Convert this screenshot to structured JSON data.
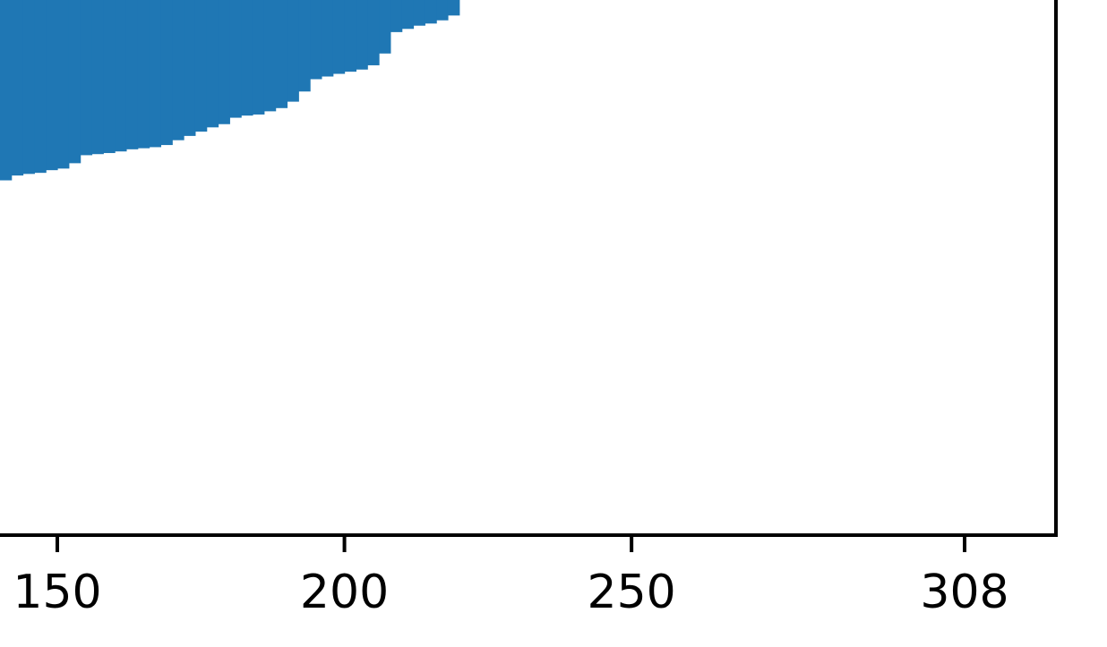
{
  "chart_data": {
    "type": "area",
    "title": "",
    "xlabel": "",
    "ylabel": "",
    "xlim": [
      140,
      312
    ],
    "ylim": [
      0,
      100
    ],
    "grid": false,
    "legend": "none",
    "x_ticks": [
      {
        "value": 150,
        "label": "150"
      },
      {
        "value": 200,
        "label": "200"
      },
      {
        "value": 250,
        "label": "250"
      },
      {
        "value": 308,
        "label": "308"
      }
    ],
    "series": [
      {
        "name": "",
        "color": "#1f77b4",
        "step": true,
        "x": [
          140,
          142,
          144,
          146,
          148,
          150,
          152,
          154,
          156,
          158,
          160,
          162,
          164,
          166,
          168,
          170,
          172,
          174,
          176,
          178,
          180,
          182,
          184,
          186,
          188,
          190,
          192,
          194,
          196,
          198,
          200,
          202,
          204,
          206,
          208,
          210,
          212,
          214,
          216,
          218,
          220
        ],
        "values": [
          66.3,
          67.2,
          67.5,
          67.7,
          68.2,
          68.5,
          69.5,
          71.0,
          71.2,
          71.4,
          71.7,
          72.1,
          72.3,
          72.5,
          72.9,
          73.8,
          74.6,
          75.4,
          76.2,
          76.8,
          78.0,
          78.4,
          78.6,
          79.2,
          79.8,
          81.0,
          82.9,
          85.2,
          85.7,
          86.2,
          86.6,
          87.0,
          87.8,
          90.0,
          94.0,
          94.6,
          95.2,
          95.6,
          96.2,
          97.1,
          97.5
        ]
      }
    ]
  }
}
